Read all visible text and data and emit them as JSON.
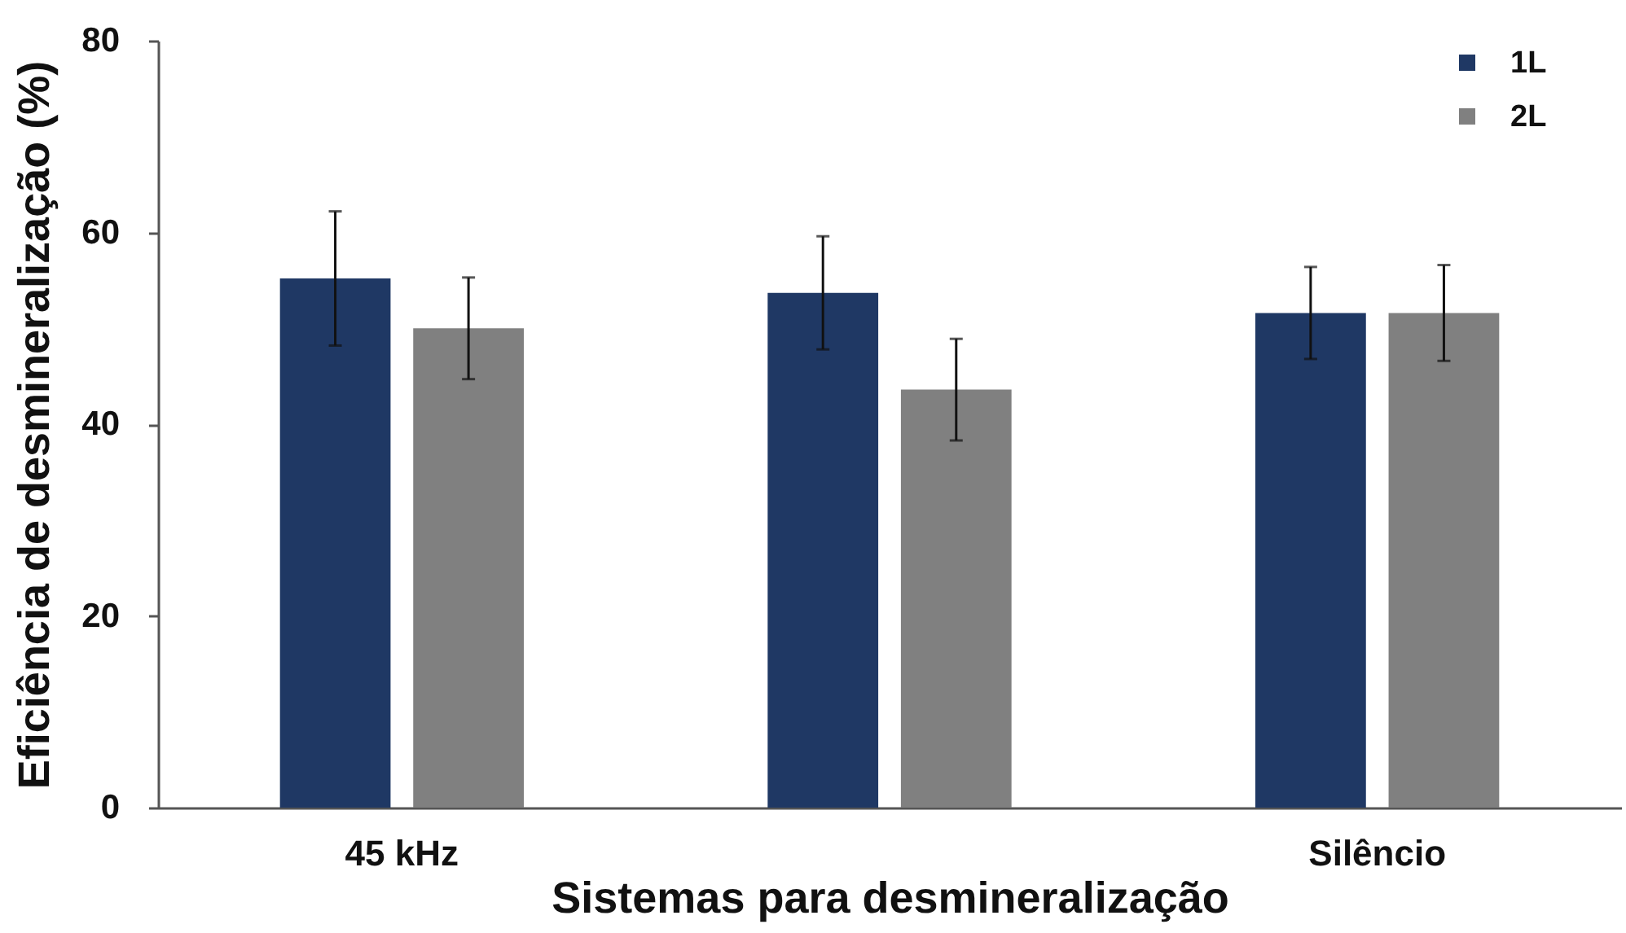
{
  "chart_data": {
    "type": "bar",
    "xlabel": "Sistemas para desmineralização",
    "ylabel": "Eficiência de desmineralização (%)",
    "categories": [
      "45 kHz",
      null,
      "Silêncio"
    ],
    "series": [
      {
        "name": "1L",
        "color": "#1f3864",
        "values": [
          55.2,
          53.7,
          51.6
        ],
        "errors": [
          7.0,
          5.9,
          4.8
        ]
      },
      {
        "name": "2L",
        "color": "#808080",
        "values": [
          50.0,
          43.6,
          51.6
        ],
        "errors": [
          5.3,
          5.3,
          5.0
        ]
      }
    ],
    "ylim": [
      0,
      80
    ],
    "yticks": [
      0,
      20,
      40,
      60,
      80
    ],
    "grid": false,
    "legend": "top right"
  }
}
